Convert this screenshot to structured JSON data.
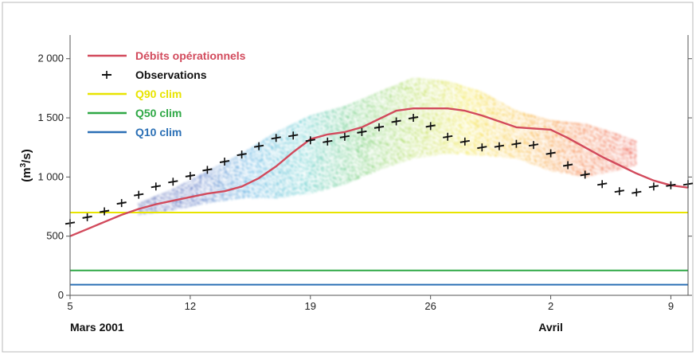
{
  "colors": {
    "debits": "#d24a5c",
    "observations": "#111111",
    "q90": "#e8e400",
    "q50": "#2ea845",
    "q10": "#2a6fb5",
    "frame": "#b8b8b8",
    "axis": "#555555",
    "ensemble_gradient": [
      "#23379a",
      "#2f54b5",
      "#2a9ad8",
      "#3cc0c0",
      "#52c15a",
      "#a6d63a",
      "#f0e020",
      "#f7b21f",
      "#f36a20",
      "#e8402a"
    ]
  },
  "chart_data": {
    "type": "line",
    "title": "",
    "xlabel": "",
    "ylabel": "(m³/s)",
    "ylabel_parts": {
      "open": "(m",
      "sup": "3",
      "close": "/s)"
    },
    "x_range": [
      "2001-03-05",
      "2001-04-10"
    ],
    "ylim": [
      0,
      2200
    ],
    "x_ticks": [
      {
        "date": "2001-03-05",
        "label": "5"
      },
      {
        "date": "2001-03-12",
        "label": "12"
      },
      {
        "date": "2001-03-19",
        "label": "19"
      },
      {
        "date": "2001-03-26",
        "label": "26"
      },
      {
        "date": "2001-04-02",
        "label": "2"
      },
      {
        "date": "2001-04-09",
        "label": "9"
      }
    ],
    "y_ticks": [
      {
        "value": 0,
        "label": "0"
      },
      {
        "value": 500,
        "label": "500"
      },
      {
        "value": 1000,
        "label": "1 000"
      },
      {
        "value": 1500,
        "label": "1 500"
      },
      {
        "value": 2000,
        "label": "2 000"
      }
    ],
    "month_labels": [
      {
        "date": "2001-03-05",
        "label": "Mars 2001"
      },
      {
        "date": "2001-04-02",
        "label": "Avril"
      }
    ],
    "legend_position": "top-left",
    "series": [
      {
        "name": "Débits opérationnels",
        "style": "line",
        "x": [
          "2001-03-05",
          "2001-03-06",
          "2001-03-07",
          "2001-03-08",
          "2001-03-09",
          "2001-03-10",
          "2001-03-11",
          "2001-03-12",
          "2001-03-13",
          "2001-03-14",
          "2001-03-15",
          "2001-03-16",
          "2001-03-17",
          "2001-03-18",
          "2001-03-19",
          "2001-03-20",
          "2001-03-21",
          "2001-03-22",
          "2001-03-23",
          "2001-03-24",
          "2001-03-25",
          "2001-03-26",
          "2001-03-27",
          "2001-03-28",
          "2001-03-29",
          "2001-03-30",
          "2001-03-31",
          "2001-04-01",
          "2001-04-02",
          "2001-04-03",
          "2001-04-04",
          "2001-04-05",
          "2001-04-06",
          "2001-04-07",
          "2001-04-08",
          "2001-04-09",
          "2001-04-10"
        ],
        "y": [
          500,
          560,
          620,
          680,
          730,
          770,
          800,
          830,
          860,
          880,
          920,
          990,
          1090,
          1210,
          1320,
          1360,
          1380,
          1420,
          1490,
          1560,
          1580,
          1580,
          1580,
          1560,
          1520,
          1470,
          1420,
          1410,
          1400,
          1330,
          1250,
          1170,
          1100,
          1030,
          970,
          930,
          910
        ]
      },
      {
        "name": "Observations",
        "style": "markers",
        "x": [
          "2001-03-05",
          "2001-03-06",
          "2001-03-07",
          "2001-03-08",
          "2001-03-09",
          "2001-03-10",
          "2001-03-11",
          "2001-03-12",
          "2001-03-13",
          "2001-03-14",
          "2001-03-15",
          "2001-03-16",
          "2001-03-17",
          "2001-03-18",
          "2001-03-19",
          "2001-03-20",
          "2001-03-21",
          "2001-03-22",
          "2001-03-23",
          "2001-03-24",
          "2001-03-25",
          "2001-03-26",
          "2001-03-27",
          "2001-03-28",
          "2001-03-29",
          "2001-03-30",
          "2001-03-31",
          "2001-04-01",
          "2001-04-02",
          "2001-04-03",
          "2001-04-04",
          "2001-04-05",
          "2001-04-06",
          "2001-04-07",
          "2001-04-08",
          "2001-04-09",
          "2001-04-10"
        ],
        "y": [
          610,
          660,
          710,
          780,
          850,
          920,
          960,
          1010,
          1060,
          1130,
          1190,
          1260,
          1330,
          1350,
          1310,
          1300,
          1340,
          1380,
          1420,
          1470,
          1500,
          1430,
          1340,
          1300,
          1250,
          1260,
          1280,
          1270,
          1200,
          1100,
          1020,
          940,
          880,
          870,
          920,
          930,
          940
        ]
      },
      {
        "name": "Q90 clim",
        "style": "hline",
        "value": 700
      },
      {
        "name": "Q50 clim",
        "style": "hline",
        "value": 210
      },
      {
        "name": "Q10 clim",
        "style": "hline",
        "value": 90
      }
    ],
    "ensemble_envelope": {
      "x": [
        "2001-03-09",
        "2001-03-11",
        "2001-03-13",
        "2001-03-15",
        "2001-03-17",
        "2001-03-19",
        "2001-03-21",
        "2001-03-23",
        "2001-03-25",
        "2001-03-27",
        "2001-03-29",
        "2001-03-31",
        "2001-04-02",
        "2001-04-04",
        "2001-04-06",
        "2001-04-07"
      ],
      "upper": [
        780,
        900,
        1050,
        1200,
        1380,
        1520,
        1600,
        1720,
        1840,
        1810,
        1720,
        1560,
        1480,
        1450,
        1360,
        1300
      ],
      "lower": [
        680,
        720,
        780,
        820,
        820,
        860,
        940,
        1060,
        1160,
        1200,
        1180,
        1160,
        1050,
        1000,
        1060,
        1100
      ]
    }
  }
}
